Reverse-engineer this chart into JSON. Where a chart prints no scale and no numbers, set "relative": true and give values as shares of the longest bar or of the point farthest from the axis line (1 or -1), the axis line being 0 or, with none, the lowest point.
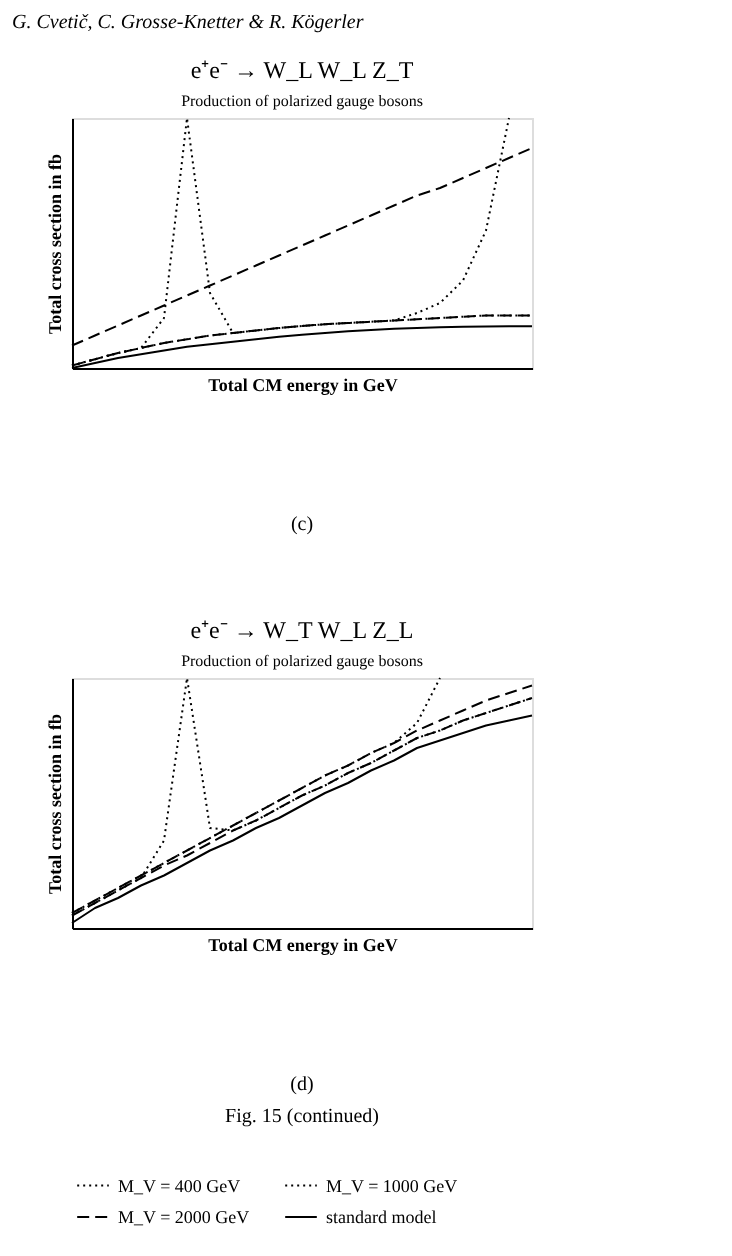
{
  "chart_data": [
    {
      "type": "line",
      "title": "e⁺e⁻ → W_L W_L Z_T",
      "subtitle": "Production of polarized gauge bosons",
      "xlabel": "Total CM energy in GeV",
      "ylabel": "Total cross section in fb",
      "relative": true,
      "tick_labels": false,
      "grid": false,
      "legend": "bottom",
      "annotations": [
        "G. Cvetič, C. Grosse-Knetter & R. Kögerler",
        "(c)"
      ],
      "categories": [
        null,
        null,
        null,
        null,
        null,
        null,
        null,
        null,
        null,
        null,
        null,
        null,
        null,
        null,
        null,
        null,
        null,
        null,
        null,
        null,
        null
      ],
      "series": [
        {
          "name": "M_V = 400 GeV",
          "color": "#000000",
          "line_style": "dotted",
          "values": [
            0.01,
            0.035,
            0.06,
            0.08,
            0.2,
            1.0,
            0.3,
            0.14,
            0.15,
            0.16,
            0.168,
            0.175,
            0.18,
            0.185,
            0.19,
            0.195,
            0.2,
            0.205,
            0.21,
            0.21,
            0.21
          ]
        },
        {
          "name": "M_V = 1000 GeV",
          "color": "#000000",
          "line_style": "dotted",
          "values": [
            0.01,
            0.035,
            0.06,
            0.08,
            0.1,
            0.115,
            0.13,
            0.14,
            0.15,
            0.16,
            0.168,
            0.175,
            0.18,
            0.185,
            0.19,
            0.22,
            0.26,
            0.35,
            0.55,
            1.0,
            null
          ]
        },
        {
          "name": "M_V = 2000 GeV",
          "color": "#000000",
          "line_style": "dashed",
          "values": [
            0.01,
            0.035,
            0.06,
            0.08,
            0.1,
            0.115,
            0.13,
            0.14,
            0.15,
            0.16,
            0.168,
            0.175,
            0.18,
            0.185,
            0.19,
            0.195,
            0.2,
            0.205,
            0.21,
            0.21,
            0.21
          ]
        },
        {
          "name": "standard model",
          "color": "#000000",
          "line_style": "solid",
          "values": [
            0.0,
            0.02,
            0.04,
            0.055,
            0.07,
            0.085,
            0.095,
            0.105,
            0.115,
            0.125,
            0.133,
            0.14,
            0.147,
            0.152,
            0.157,
            0.16,
            0.163,
            0.165,
            0.166,
            0.167,
            0.167
          ]
        },
        {
          "color": "#000000",
          "line_style": "dashed",
          "values": [
            0.09,
            0.13,
            0.17,
            0.21,
            0.25,
            0.29,
            0.33,
            0.37,
            0.41,
            0.45,
            0.49,
            0.53,
            0.57,
            0.61,
            0.65,
            0.69,
            0.72,
            0.76,
            0.8,
            0.84,
            0.88
          ]
        }
      ]
    },
    {
      "type": "line",
      "title": "e⁺e⁻ → W_T W_L Z_L",
      "subtitle": "Production of polarized gauge bosons",
      "xlabel": "Total CM energy in GeV",
      "ylabel": "Total cross section in fb",
      "relative": true,
      "tick_labels": false,
      "grid": false,
      "legend": "bottom",
      "annotations": [
        "(d)",
        "Fig. 15 (continued)"
      ],
      "categories": [
        null,
        null,
        null,
        null,
        null,
        null,
        null,
        null,
        null,
        null,
        null,
        null,
        null,
        null,
        null,
        null,
        null,
        null,
        null,
        null,
        null
      ],
      "series": [
        {
          "name": "M_V = 400 GeV",
          "color": "#000000",
          "line_style": "dotted",
          "values": [
            0.05,
            0.1,
            0.15,
            0.2,
            0.35,
            1.0,
            0.4,
            0.39,
            0.43,
            0.48,
            0.53,
            0.57,
            0.62,
            0.66,
            0.71,
            0.76,
            0.79,
            0.83,
            0.86,
            0.89,
            0.92
          ]
        },
        {
          "name": "M_V = 1000 GeV",
          "color": "#000000",
          "line_style": "dotted",
          "values": [
            0.06,
            0.11,
            0.16,
            0.21,
            0.26,
            0.31,
            0.36,
            0.41,
            0.46,
            0.51,
            0.56,
            0.61,
            0.65,
            0.7,
            0.74,
            0.82,
            1.0,
            null,
            null,
            null,
            null
          ]
        },
        {
          "name": "M_V = 2000 GeV",
          "color": "#000000",
          "line_style": "dashed",
          "values": [
            0.05,
            0.1,
            0.15,
            0.2,
            0.25,
            0.29,
            0.34,
            0.39,
            0.43,
            0.48,
            0.53,
            0.57,
            0.62,
            0.66,
            0.71,
            0.76,
            0.79,
            0.83,
            0.86,
            0.89,
            0.92
          ]
        },
        {
          "name": "standard model",
          "color": "#000000",
          "line_style": "solid",
          "values": [
            0.02,
            0.08,
            0.12,
            0.17,
            0.21,
            0.26,
            0.31,
            0.35,
            0.4,
            0.44,
            0.49,
            0.54,
            0.58,
            0.63,
            0.67,
            0.72,
            0.75,
            0.78,
            0.81,
            0.83,
            0.85
          ]
        },
        {
          "color": "#000000",
          "line_style": "dashed",
          "values": [
            0.06,
            0.11,
            0.16,
            0.21,
            0.26,
            0.31,
            0.36,
            0.41,
            0.46,
            0.51,
            0.56,
            0.61,
            0.65,
            0.7,
            0.74,
            0.79,
            0.83,
            0.87,
            0.91,
            0.94,
            0.97
          ]
        }
      ]
    }
  ]
}
